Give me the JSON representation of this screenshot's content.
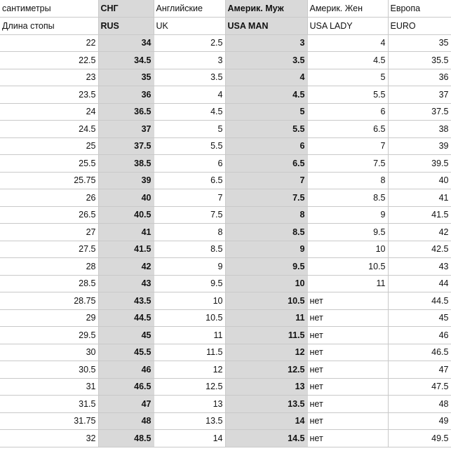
{
  "headers": {
    "row1": [
      "сантиметры",
      "СНГ",
      "Английские",
      "Америк. Муж",
      "Америк. Жен",
      "Европа"
    ],
    "row2": [
      "Длина стопы",
      "RUS",
      "UK",
      "USA MAN",
      "USA LADY",
      "EURO"
    ]
  },
  "rows": [
    [
      "22",
      "34",
      "2.5",
      "3",
      "4",
      "35"
    ],
    [
      "22.5",
      "34.5",
      "3",
      "3.5",
      "4.5",
      "35.5"
    ],
    [
      "23",
      "35",
      "3.5",
      "4",
      "5",
      "36"
    ],
    [
      "23.5",
      "36",
      "4",
      "4.5",
      "5.5",
      "37"
    ],
    [
      "24",
      "36.5",
      "4.5",
      "5",
      "6",
      "37.5"
    ],
    [
      "24.5",
      "37",
      "5",
      "5.5",
      "6.5",
      "38"
    ],
    [
      "25",
      "37.5",
      "5.5",
      "6",
      "7",
      "39"
    ],
    [
      "25.5",
      "38.5",
      "6",
      "6.5",
      "7.5",
      "39.5"
    ],
    [
      "25.75",
      "39",
      "6.5",
      "7",
      "8",
      "40"
    ],
    [
      "26",
      "40",
      "7",
      "7.5",
      "8.5",
      "41"
    ],
    [
      "26.5",
      "40.5",
      "7.5",
      "8",
      "9",
      "41.5"
    ],
    [
      "27",
      "41",
      "8",
      "8.5",
      "9.5",
      "42"
    ],
    [
      "27.5",
      "41.5",
      "8.5",
      "9",
      "10",
      "42.5"
    ],
    [
      "28",
      "42",
      "9",
      "9.5",
      "10.5",
      "43"
    ],
    [
      "28.5",
      "43",
      "9.5",
      "10",
      "11",
      "44"
    ],
    [
      "28.75",
      "43.5",
      "10",
      "10.5",
      "нет",
      "44.5"
    ],
    [
      "29",
      "44.5",
      "10.5",
      "11",
      "нет",
      "45"
    ],
    [
      "29.5",
      "45",
      "11",
      "11.5",
      "нет",
      "46"
    ],
    [
      "30",
      "45.5",
      "11.5",
      "12",
      "нет",
      "46.5"
    ],
    [
      "30.5",
      "46",
      "12",
      "12.5",
      "нет",
      "47"
    ],
    [
      "31",
      "46.5",
      "12.5",
      "13",
      "нет",
      "47.5"
    ],
    [
      "31.5",
      "47",
      "13",
      "13.5",
      "нет",
      "48"
    ],
    [
      "31.75",
      "48",
      "13.5",
      "14",
      "нет",
      "49"
    ],
    [
      "32",
      "48.5",
      "14",
      "14.5",
      "нет",
      "49.5"
    ]
  ],
  "colors": {
    "shaded_column": "#d9d9d9",
    "grid": "#c9c9c9"
  }
}
